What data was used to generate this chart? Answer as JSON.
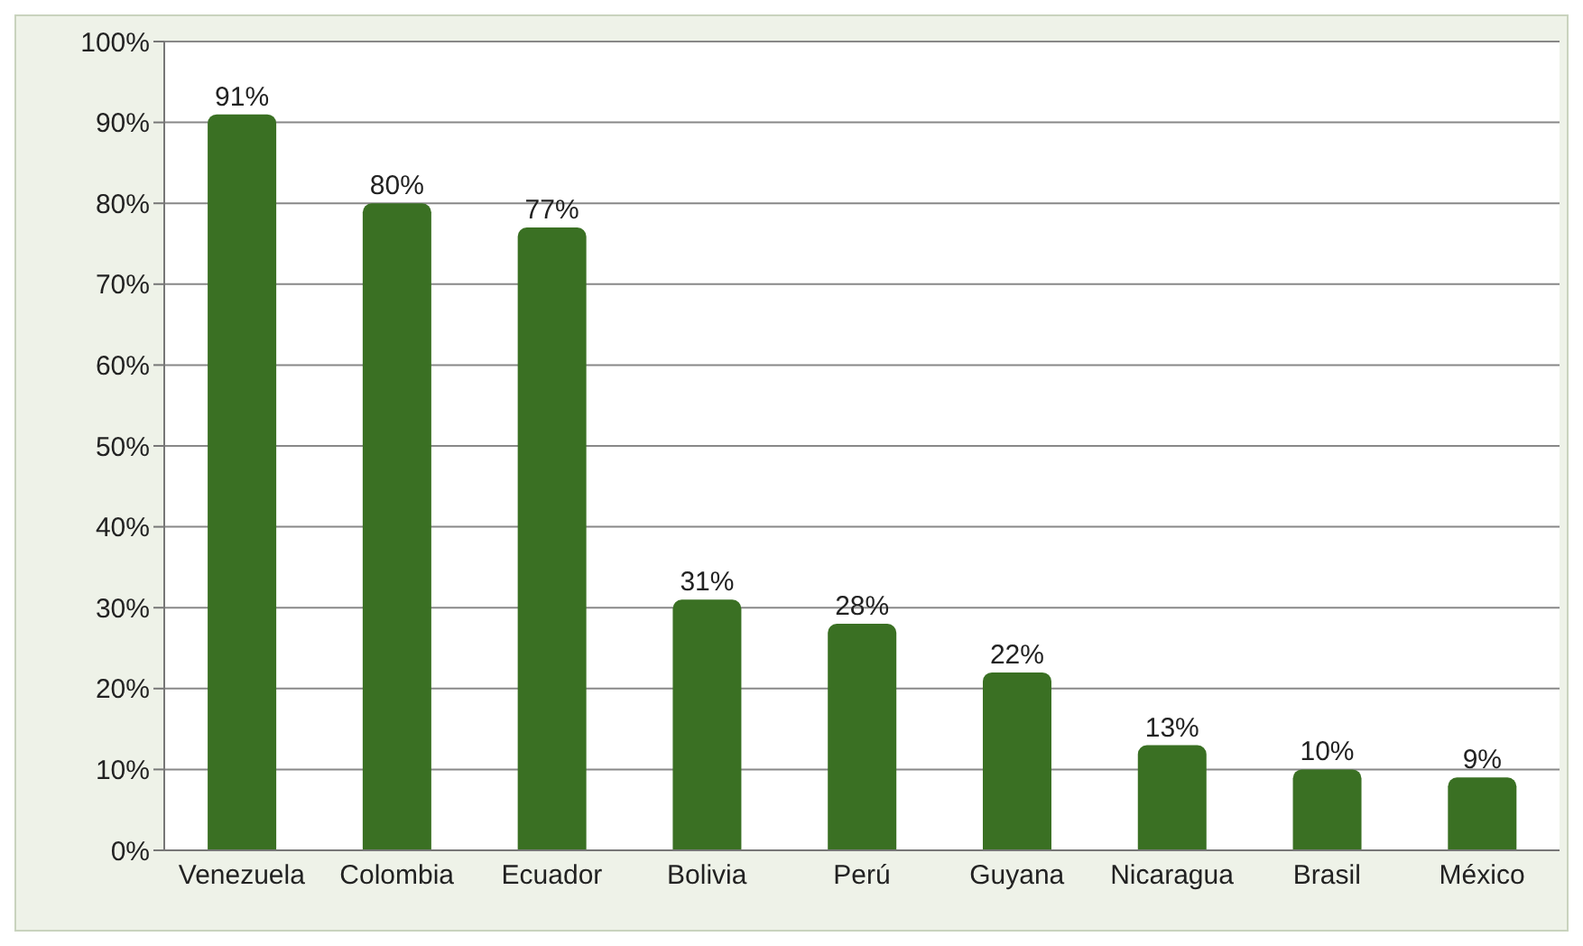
{
  "chart_data": {
    "type": "bar",
    "categories": [
      "Venezuela",
      "Colombia",
      "Ecuador",
      "Bolivia",
      "Perú",
      "Guyana",
      "Nicaragua",
      "Brasil",
      "México"
    ],
    "values": [
      91,
      80,
      77,
      31,
      28,
      22,
      13,
      10,
      9
    ],
    "value_labels": [
      "91%",
      "80%",
      "77%",
      "31%",
      "28%",
      "22%",
      "13%",
      "10%",
      "9%"
    ],
    "color": "#3a7023",
    "ylim": [
      0,
      100
    ],
    "yticks": [
      {
        "value": 0,
        "label": "0%"
      },
      {
        "value": 10,
        "label": "10%"
      },
      {
        "value": 20,
        "label": "20%"
      },
      {
        "value": 30,
        "label": "30%"
      },
      {
        "value": 40,
        "label": "40%"
      },
      {
        "value": 50,
        "label": "50%"
      },
      {
        "value": 60,
        "label": "60%"
      },
      {
        "value": 70,
        "label": "70%"
      },
      {
        "value": 80,
        "label": "80%"
      },
      {
        "value": 90,
        "label": "90%"
      },
      {
        "value": 100,
        "label": "100%"
      }
    ],
    "grid": "y"
  }
}
